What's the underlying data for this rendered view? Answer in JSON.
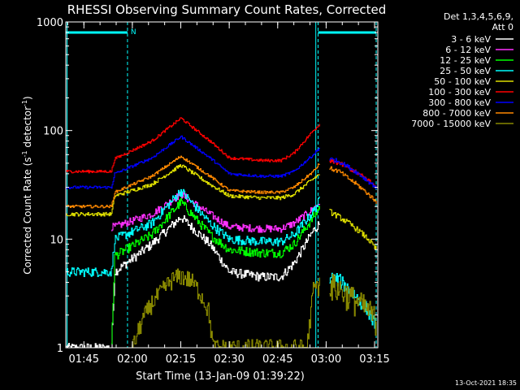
{
  "chart_data": {
    "type": "line",
    "title": "RHESSI Observing Summary Count Rates, Corrected",
    "xlabel": "Start Time (13-Jan-09 01:39:22)",
    "ylabel_parts": [
      "Corrected Count Rate (s",
      "-1",
      " detector",
      "-1",
      ")"
    ],
    "y_scale": "log",
    "ylim": [
      1,
      1000
    ],
    "xlim_min": [
      99.4,
      196.0
    ],
    "yticks": [
      {
        "value": 1,
        "label": "1"
      },
      {
        "value": 10,
        "label": "10"
      },
      {
        "value": 100,
        "label": "100"
      },
      {
        "value": 1000,
        "label": "1000"
      }
    ],
    "xticks": [
      {
        "value": 105,
        "label": "01:45"
      },
      {
        "value": 120,
        "label": "02:00"
      },
      {
        "value": 135,
        "label": "02:15"
      },
      {
        "value": 150,
        "label": "02:30"
      },
      {
        "value": 165,
        "label": "02:45"
      },
      {
        "value": 180,
        "label": "03:00"
      },
      {
        "value": 195,
        "label": "03:15"
      }
    ],
    "legend_header": [
      "Det 1,3,4,5,6,9,",
      "Att 0"
    ],
    "legend_position": "right",
    "night_label": "N",
    "timestamp": "13-Oct-2021 18:35",
    "night_lines": [
      118.5,
      177.5,
      195.5
    ],
    "night_bars": [
      [
        99.5,
        118.5
      ],
      [
        177.5,
        195.5
      ]
    ],
    "night_bar_level": 800,
    "saa_lines": [
      99.8,
      176.8
    ],
    "series": [
      {
        "name": "3 - 6 keV",
        "color": "#ffffff",
        "noise": 0.1,
        "x": [
          99.5,
          100.5,
          113.5,
          114.5,
          126,
          135,
          144,
          150,
          160,
          166,
          170,
          176,
          178
        ],
        "y": [
          1,
          1,
          1,
          5,
          9,
          16,
          9,
          5,
          4.5,
          4.5,
          6,
          12,
          14
        ]
      },
      {
        "name": "6 - 12 keV",
        "color": "#ff30ff",
        "noise": 0.08,
        "x": [
          113.5,
          114.5,
          126,
          135,
          144,
          150,
          160,
          166,
          170,
          176,
          178
        ],
        "y": [
          13,
          13,
          17,
          26,
          17,
          13,
          12.5,
          12.5,
          14,
          19,
          22
        ]
      },
      {
        "name": "12 - 25 keV",
        "color": "#00ff00",
        "noise": 0.1,
        "x": [
          113.5,
          114.5,
          126,
          135,
          144,
          150,
          160,
          166,
          170,
          176,
          178
        ],
        "y": [
          1,
          7,
          11,
          22,
          11,
          8,
          7.5,
          7.5,
          9,
          16,
          20
        ]
      },
      {
        "name": "25 - 50 keV",
        "color": "#00ffff",
        "noise": 0.1,
        "x": [
          99.5,
          100.5,
          113.5,
          114.5,
          126,
          135,
          144,
          150,
          160,
          166,
          170,
          176,
          178
        ],
        "y": [
          5,
          5,
          5,
          10,
          14,
          28,
          14,
          10,
          9.5,
          9.5,
          11,
          18,
          23
        ]
      },
      {
        "name": "50 - 100 keV",
        "color": "#dddd00",
        "noise": 0.04,
        "x": [
          99.5,
          100.5,
          113.5,
          114.5,
          126,
          135,
          144,
          150,
          160,
          166,
          170,
          176,
          178
        ],
        "y": [
          17,
          17,
          17,
          25,
          32,
          48,
          32,
          25,
          24,
          24,
          26,
          36,
          40
        ]
      },
      {
        "name": "100 - 300 keV",
        "color": "#ff0000",
        "noise": 0.03,
        "x": [
          99.5,
          100.5,
          113.5,
          114.5,
          126,
          135,
          144,
          150,
          160,
          166,
          170,
          176,
          178
        ],
        "y": [
          42,
          42,
          42,
          55,
          80,
          130,
          80,
          56,
          53,
          53,
          62,
          100,
          115
        ]
      },
      {
        "name": "300 - 800 keV",
        "color": "#0000ff",
        "noise": 0.03,
        "x": [
          99.5,
          100.5,
          113.5,
          114.5,
          126,
          135,
          144,
          150,
          160,
          166,
          170,
          176,
          178
        ],
        "y": [
          30,
          30,
          30,
          40,
          56,
          88,
          56,
          40,
          38,
          38,
          42,
          60,
          70
        ]
      },
      {
        "name": "800 - 7000 keV",
        "color": "#ff8800",
        "noise": 0.03,
        "x": [
          99.5,
          100.5,
          113.5,
          114.5,
          126,
          135,
          144,
          150,
          160,
          166,
          170,
          176,
          178
        ],
        "y": [
          20,
          20,
          20,
          27,
          38,
          58,
          38,
          28,
          27,
          27,
          30,
          42,
          50
        ]
      },
      {
        "name": "7000 - 15000 keV",
        "color": "#888800",
        "noise": 0.2,
        "x": [
          120,
          123,
          126,
          129,
          132,
          135,
          138,
          141,
          143.5,
          145,
          174,
          176,
          178
        ],
        "y": [
          1,
          1.8,
          2.6,
          3.3,
          4.2,
          4.6,
          4.2,
          3.2,
          2.2,
          1,
          1,
          3.5,
          3.8
        ]
      }
    ],
    "post_night_series": [
      {
        "name": "3 - 6 keV",
        "x": [],
        "y": []
      },
      {
        "name": "25 - 50 keV",
        "x": [
          181,
          184,
          187,
          190,
          193,
          195.5
        ],
        "y": [
          4.5,
          4.2,
          3.5,
          2.8,
          2.2,
          1.5
        ]
      },
      {
        "name": "50 - 100 keV",
        "x": [
          181,
          184,
          187,
          190,
          193,
          195.5
        ],
        "y": [
          18,
          16,
          14,
          12,
          10,
          8
        ]
      },
      {
        "name": "100 - 300 keV",
        "x": [
          181,
          184,
          187,
          190,
          193,
          195.5
        ],
        "y": [
          52,
          50,
          45,
          40,
          35,
          30
        ]
      },
      {
        "name": "300 - 800 keV",
        "x": [
          181,
          184,
          187,
          190,
          193,
          195.5
        ],
        "y": [
          55,
          52,
          46,
          40,
          34,
          30
        ]
      },
      {
        "name": "800 - 7000 keV",
        "x": [
          181,
          184,
          187,
          190,
          193,
          195.5
        ],
        "y": [
          45,
          42,
          36,
          31,
          26,
          22
        ]
      },
      {
        "name": "7000 - 15000 keV",
        "x": [
          181,
          184,
          187,
          190,
          193,
          195.5
        ],
        "y": [
          3.8,
          3.5,
          3,
          2.6,
          2.2,
          1.8
        ]
      }
    ]
  }
}
